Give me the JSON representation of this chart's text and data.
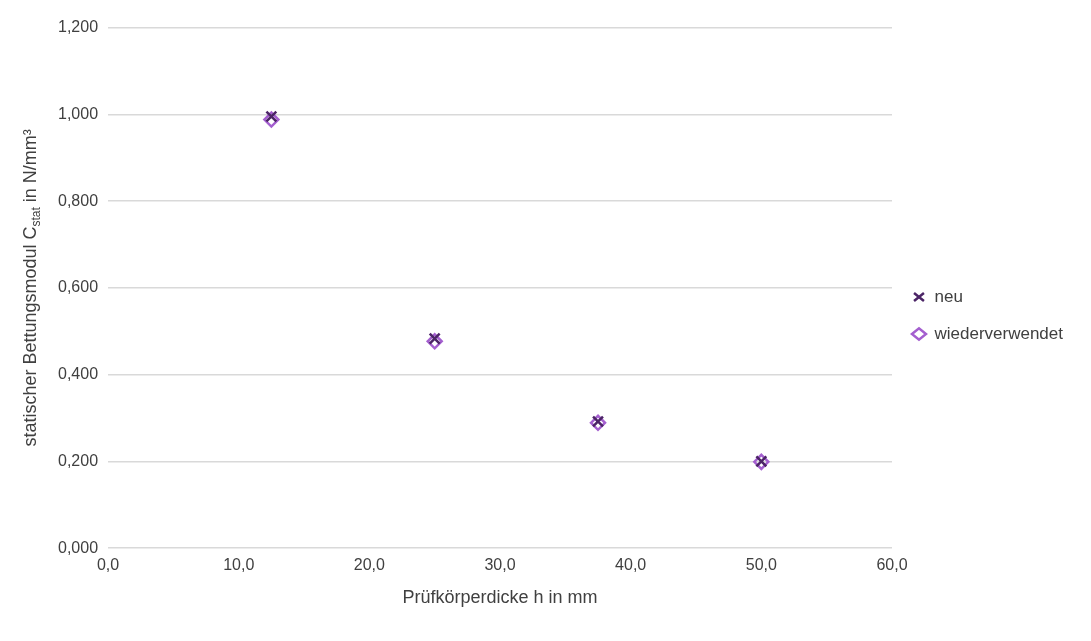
{
  "chart_data": {
    "type": "scatter",
    "xlabel": "Prüfkörperdicke h in mm",
    "ylabel": "statischer Bettungsmodul C$_{stat}$ in N/mm³",
    "series": [
      {
        "name": "neu",
        "color": "#4b2466",
        "marker": "cross",
        "x": [
          12.5,
          25,
          37.5,
          50
        ],
        "values": [
          0.995,
          0.483,
          0.292,
          0.2
        ]
      },
      {
        "name": "wiederverwendet",
        "color": "#a45fcf",
        "marker": "diamond",
        "x": [
          12.5,
          25,
          37.5,
          50
        ],
        "values": [
          0.988,
          0.477,
          0.289,
          0.199
        ]
      }
    ],
    "xlim": [
      0,
      60
    ],
    "xticks": [
      {
        "value": 0,
        "label": "0,0"
      },
      {
        "value": 10,
        "label": "10,0"
      },
      {
        "value": 20,
        "label": "20,0"
      },
      {
        "value": 30,
        "label": "30,0"
      },
      {
        "value": 40,
        "label": "40,0"
      },
      {
        "value": 50,
        "label": "50,0"
      },
      {
        "value": 60,
        "label": "60,0"
      }
    ],
    "ylim": [
      0,
      1.2
    ],
    "yticks": [
      {
        "value": 0,
        "label": "0,000"
      },
      {
        "value": 0.2,
        "label": "0,200"
      },
      {
        "value": 0.4,
        "label": "0,400"
      },
      {
        "value": 0.6,
        "label": "0,600"
      },
      {
        "value": 0.8,
        "label": "0,800"
      },
      {
        "value": 1.0,
        "label": "1,000"
      },
      {
        "value": 1.2,
        "label": "1,200"
      }
    ],
    "grid": "y",
    "legend": "right"
  }
}
